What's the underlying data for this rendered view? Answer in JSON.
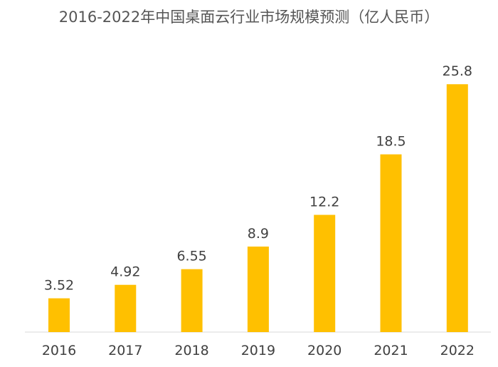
{
  "chart_data": {
    "type": "bar",
    "title": "2016-2022年中国桌面云行业市场规模预测（亿人民币）",
    "xlabel": "",
    "ylabel": "",
    "categories": [
      "2016",
      "2017",
      "2018",
      "2019",
      "2020",
      "2021",
      "2022"
    ],
    "values": [
      3.52,
      4.92,
      6.55,
      8.9,
      12.2,
      18.5,
      25.8
    ],
    "value_labels": [
      "3.52",
      "4.92",
      "6.55",
      "8.9",
      "12.2",
      "18.5",
      "25.8"
    ],
    "ylim": [
      0,
      28
    ],
    "grid": false,
    "legend": "none",
    "bar_color": "#FFC000"
  }
}
